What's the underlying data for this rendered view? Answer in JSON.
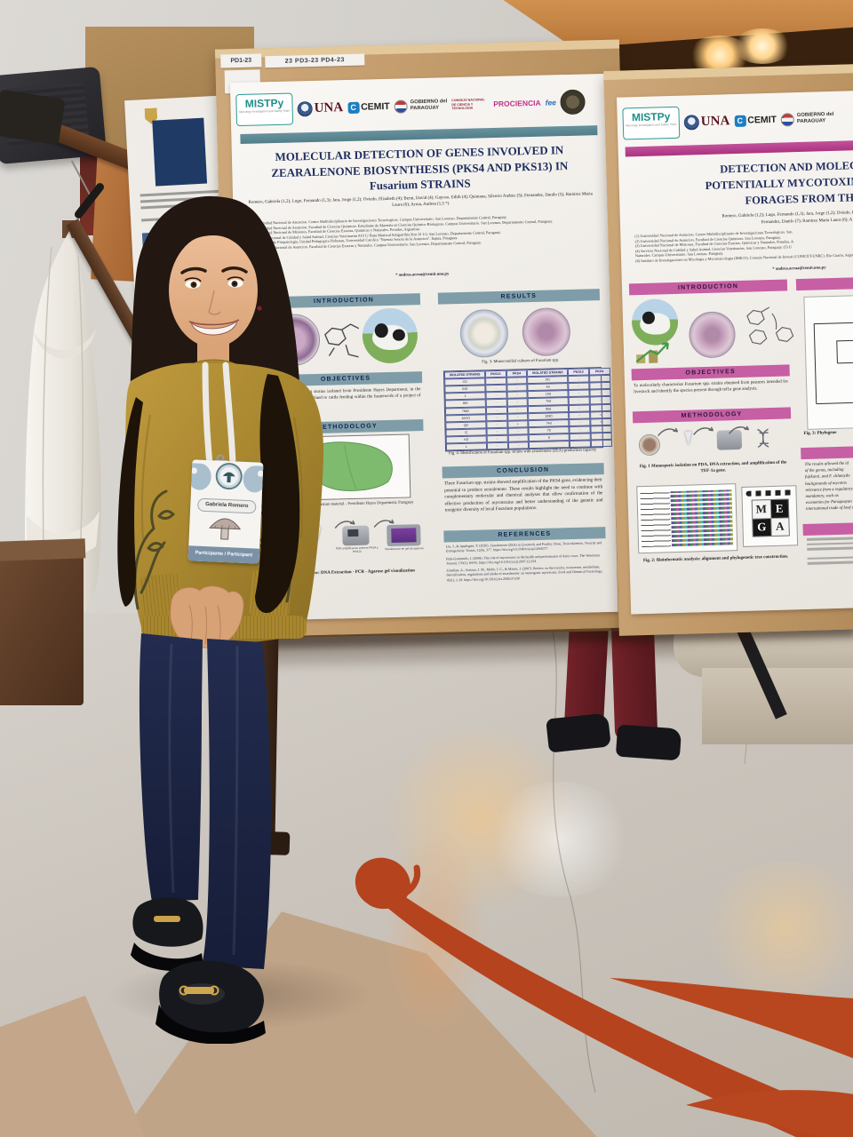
{
  "board": {
    "tag_small": "PD1-23",
    "tag_wide": "23 PD3-23 PD4-23"
  },
  "logos": {
    "mistpy": "MISTPy",
    "mistpy_sub": "Mycology Investigation and Safety Team",
    "una": "UNA",
    "cemit_c": "C",
    "cemit": "CEMIT",
    "gobierno_1": "GOBIERNO del",
    "gobierno_2": "PARAGUAY",
    "conacyt": "CONSEJO NACIONAL DE CIENCIA Y TECNOLOGIA",
    "prociencia": "PROCIENCIA",
    "fee": "fee"
  },
  "poster1": {
    "title": "MOLECULAR DETECTION OF GENES INVOLVED IN ZEARALENONE BIOSYNTHESIS (PKS4 AND PKS13) IN Fusarium STRAINS",
    "authors": "Romero, Gabriela (1,2); Lugo, Fernando (1,3); Jara, Jorge (1,2); Oviedo, Elisabeth (4); Berni, David (4); Gayoso, Edith (4); Quintana, Silverio Andres (5); Fernandez, Danilo (5); Ramirez Maria Laura (6); Arrua, Andrea (1,5 *)",
    "affiliations": [
      "1. Universidad Nacional de Asuncion. Centro Multidisciplinario de Investigaciones Tecnologicas. Campus Universitario. San Lorenzo, Departamento Central, Paraguay.",
      "2. Universidad Nacional de Asuncion. Facultad de Ciencias Quimicas. Estudiante de Maestria en Ciencias Quimico-Biologicas. Campus Universitario. San Lorenzo, Departamento Central, Paraguay.",
      "3. Universidad Nacional de Misiones, Facultad de Ciencias Exactas, Quimicas y Naturales. Posadas, Argentina.",
      "4. Servicio Nacional de Calidad y Salud Animal, Ciencias Veterinarias 810 C/ Ruta Mariscal Estigarribia Km 10 1/2, San Lorenzo, Departamento Central, Paraguay.",
      "5. Laboratorio de Fitopatologia, Unidad Pedagogica Hohenau, Universidad Catolica \"Nuestra Senora de la Asuncion\". Itapua, Paraguay.",
      "6. Universidad Nacional de Asuncion. Facultad de Ciencias Exactas y Naturales. Campus Universitario. San Lorenzo, Departamento Central, Paraguay."
    ],
    "email": "* andrea.arrua@cemit.una.py",
    "sections": {
      "introduction": "INTRODUCTION",
      "objectives": "OBJECTIVES",
      "methodology": "METHODOLOGY",
      "results": "RESULTS",
      "conclusion": "CONCLUSION",
      "references": "REFERENCES"
    },
    "objectives_text": "zearalenone-producing strains isolated from Presidente Hayes Department, in the Paraguayan Chaco, destined to cattle feeding within the framework of a project of CONACYT, Paraguay.",
    "fig1_caption": "Fig. 1: Collection of pasture material - Presidente Hayes Department, Paraguay",
    "fig2_caption": "Fig. 2: Workflow: DNA Extraction - PCR - Agarose gel visualization",
    "fig3_caption": "Fig. 3: Monoconidial cultures of Fusarium spp.",
    "fig4_caption": "Fig. 4: Identification of Fusarium spp. strains with zearalenone (ZEA) production capacity",
    "workflow_label_pcr": "PCR amplificacion primers PKS4 y PKS13",
    "workflow_label_gel": "Visualizacion en gel de agarosa",
    "table_rows": [
      [
        "ISOLATED STRAINS",
        "PKS13",
        "PKS4",
        "ISOLATED STRAINS",
        "PKS13",
        "PKS4"
      ],
      [
        "CD",
        "-",
        "-",
        "FD",
        "-",
        "-"
      ],
      [
        "EtD",
        "-",
        "-",
        "4d",
        "-",
        "-"
      ],
      [
        "1",
        "-",
        "-",
        "19d",
        "-",
        "-"
      ],
      [
        "8tD",
        "-",
        "-",
        "75d",
        "-",
        "-"
      ],
      [
        "7NtD",
        "-",
        "-",
        "80d",
        "-",
        "-"
      ],
      [
        "10OO",
        "-",
        "-",
        "109D",
        "-",
        "+"
      ],
      [
        "QD",
        "-",
        "+",
        "74d",
        "-",
        "+"
      ],
      [
        "Q",
        "-",
        "-",
        "7D",
        "-",
        "-"
      ],
      [
        "KD",
        "-",
        "-",
        "U",
        "-",
        "-"
      ],
      [
        "L",
        "-",
        "-",
        "",
        "",
        ""
      ]
    ],
    "conclusion_text": "Three Fusarium spp. strains showed amplification of the PKS4 gene, evidencing their potential to produce zearalenone. These results highlight the need to continue with complementary molecular and chemical analyses that allow confirmation of the effective production of mycotoxins and better understanding of the genetic and toxigenic diversity of local Fusarium populations.",
    "references": [
      "Liu, J., & Applegate, T. (2020). Zearalenone (ZEA) in Livestock and Poultry: Dose, Toxicokinetics, Toxicity and Estrogenicity. Toxins, 12(6), 377. https://doi.org/10.3390/toxins12060377",
      "Fink-Gremmels, J. (2008). The role of mycotoxins in the health and performance of dairy cows. The Veterinary Journal, 176(1), 84-92. https://doi.org/10.1016/j.tvjl.2007.12.034",
      "Zinedine, A., Soriano, J. M., Molto, J. C., & Manes, J. (2007). Review on the toxicity, occurrence, metabolism, detoxification, regulations and intake of zearalenone: an oestrogenic mycotoxin. Food and Chemical Toxicology, 45(1), 1-18. https://doi.org/10.1016/j.fct.2006.07.030"
    ]
  },
  "poster2": {
    "title_line1": "DETECTION AND MOLECULAR CH",
    "title_line2": "POTENTIALLY MYCOTOXIN-PRODUC",
    "title_line3": "FORAGES FROM THE PARAG",
    "authors_line1": "Romero, Gabriela (1,2); Lugo, Fernando (1,3); Jara, Jorge (1,2); Oviedo, Elisabeth (4); Bern",
    "authors_line2": "Fernandez, Danilo (7); Ramirez Maria Laura (6); A",
    "affiliations": [
      "(1) Universidad Nacional de Asuncion. Centro Multidisciplinario de Investigaciones Tecnologicas. San",
      "(2) Universidad Nacional de Asuncion. Facultad de Ciencias Quimicas. San Lorenzo, Paraguay.",
      "(3) Universidad Nacional de Misiones, Facultad de Ciencias Exactas, Quimicas y Naturales, Posadas, A",
      "(4) Servicio Nacional de Calidad y Salud Animal, Ciencias Veterinarias. San Lorenzo, Paraguay. (5) U",
      "Naturales. Campus Universitario. San Lorenzo, Paraguay.",
      "(6) Instituto de Investigaciones en Micologia y Micotoxicologia (IMICO). Consejo Nacional de Investi (CONICET-UNRC). Rio Cuarto, Argentina."
    ],
    "email": "* andrea.arrua@cemit.una.py",
    "sections": {
      "introduction": "INTRODUCTION",
      "objectives": "OBJECTIVES",
      "methodology": "METHODOLOGY"
    },
    "objectives_text": "To molecularly characterize Fusarium spp. strains obtained from pastures intended for livestock and identify the species present through tef1a gene analysis.",
    "fig1_caption": "Fig. 1 Monosporic isolation on PDA, DNA extraction, and amplification of the TEF-1a gene.",
    "fig2_caption": "Fig. 2: Bioinformatic analysis: alignment and phylogenetic tree construction.",
    "fig3_caption": "Fig. 3: Phylogene",
    "results_lines": [
      "The results allowed the id",
      "of the genus, including",
      "fujikuroi, and F. chlamydo",
      "backgrounds of mycotox",
      "relevance from a regulatory",
      "mandatory, such as",
      "economies for Paraguayan",
      "international trade of beef and"
    ],
    "mega": {
      "m": "M",
      "e": "E",
      "g": "G",
      "a": "A"
    }
  },
  "badge": {
    "name": "Gabriela Romero",
    "role": "Participante / Participant"
  }
}
